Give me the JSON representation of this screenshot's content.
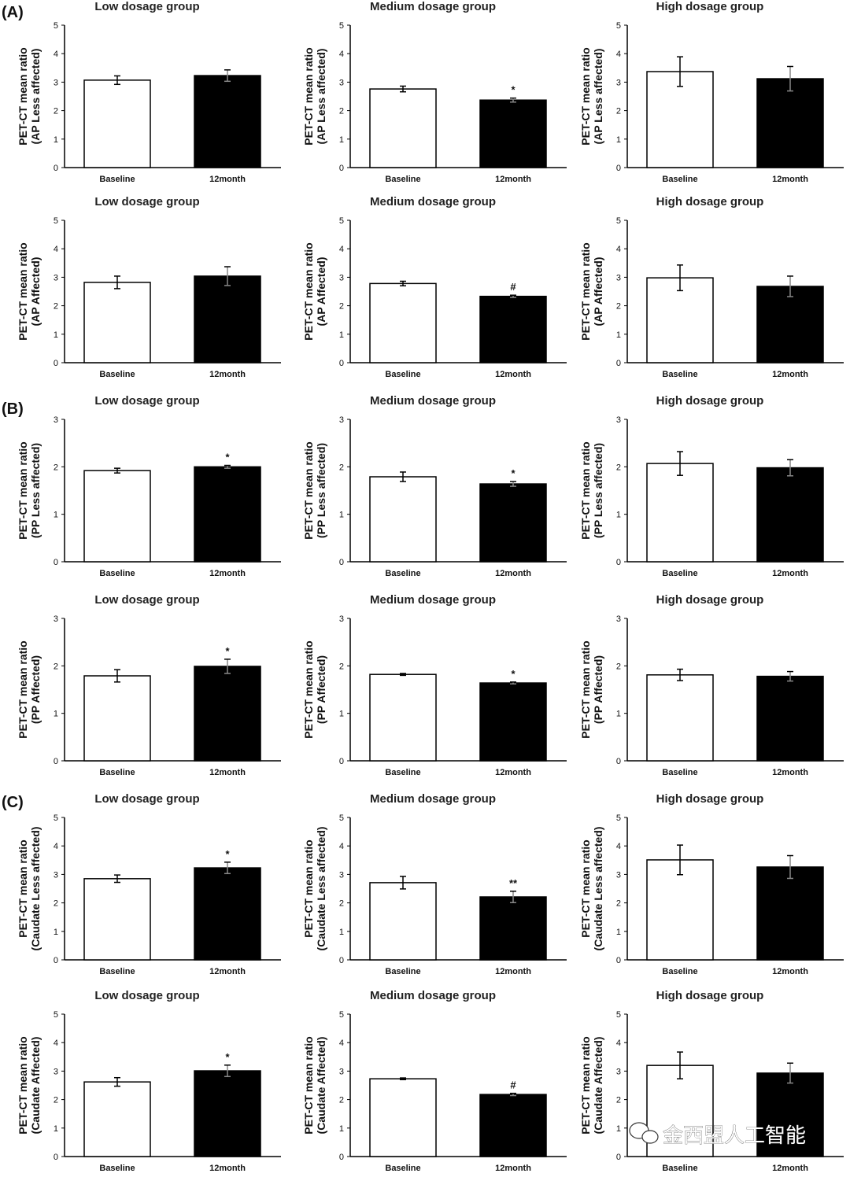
{
  "panels": [
    "(A)",
    "(B)",
    "(C)"
  ],
  "watermark": "金西盟人工智能",
  "chart_data": [
    {
      "type": "bar",
      "title": "Low dosage group",
      "ylabel": [
        "PET-CT mean ratio",
        "(AP Less affected)"
      ],
      "categories": [
        "Baseline",
        "12month"
      ],
      "values": [
        3.07,
        3.23
      ],
      "errors": [
        0.15,
        0.2
      ],
      "significance": [
        "",
        ""
      ],
      "ylim": [
        0,
        5
      ],
      "yticks": [
        0,
        1,
        2,
        3,
        4,
        5
      ]
    },
    {
      "type": "bar",
      "title": "Medium dosage group",
      "ylabel": [
        "PET-CT mean ratio",
        "(AP Less affected)"
      ],
      "categories": [
        "Baseline",
        "12month"
      ],
      "values": [
        2.76,
        2.37
      ],
      "errors": [
        0.1,
        0.07
      ],
      "significance": [
        "",
        "*"
      ],
      "ylim": [
        0,
        5
      ],
      "yticks": [
        0,
        1,
        2,
        3,
        4,
        5
      ]
    },
    {
      "type": "bar",
      "title": "High dosage group",
      "ylabel": [
        "PET-CT mean ratio",
        "(AP Less affected)"
      ],
      "categories": [
        "Baseline",
        "12month"
      ],
      "values": [
        3.37,
        3.12
      ],
      "errors": [
        0.52,
        0.43
      ],
      "significance": [
        "",
        ""
      ],
      "ylim": [
        0,
        5
      ],
      "yticks": [
        0,
        1,
        2,
        3,
        4,
        5
      ]
    },
    {
      "type": "bar",
      "title": "Low dosage group",
      "ylabel": [
        "PET-CT mean ratio",
        "(AP Affected)"
      ],
      "categories": [
        "Baseline",
        "12month"
      ],
      "values": [
        2.82,
        3.04
      ],
      "errors": [
        0.22,
        0.33
      ],
      "significance": [
        "",
        ""
      ],
      "ylim": [
        0,
        5
      ],
      "yticks": [
        0,
        1,
        2,
        3,
        4,
        5
      ]
    },
    {
      "type": "bar",
      "title": "Medium dosage group",
      "ylabel": [
        "PET-CT mean ratio",
        "(AP Affected)"
      ],
      "categories": [
        "Baseline",
        "12month"
      ],
      "values": [
        2.78,
        2.33
      ],
      "errors": [
        0.08,
        0.04
      ],
      "significance": [
        "",
        "#"
      ],
      "ylim": [
        0,
        5
      ],
      "yticks": [
        0,
        1,
        2,
        3,
        4,
        5
      ]
    },
    {
      "type": "bar",
      "title": "High dosage group",
      "ylabel": [
        "PET-CT mean ratio",
        "(AP Affected)"
      ],
      "categories": [
        "Baseline",
        "12month"
      ],
      "values": [
        2.98,
        2.68
      ],
      "errors": [
        0.45,
        0.36
      ],
      "significance": [
        "",
        ""
      ],
      "ylim": [
        0,
        5
      ],
      "yticks": [
        0,
        1,
        2,
        3,
        4,
        5
      ]
    },
    {
      "type": "bar",
      "title": "Low dosage group",
      "ylabel": [
        "PET-CT mean ratio",
        "(PP Less affected)"
      ],
      "categories": [
        "Baseline",
        "12month"
      ],
      "values": [
        1.92,
        2.0
      ],
      "errors": [
        0.05,
        0.03
      ],
      "significance": [
        "",
        "*"
      ],
      "ylim": [
        0,
        3
      ],
      "yticks": [
        0,
        1,
        2,
        3
      ]
    },
    {
      "type": "bar",
      "title": "Medium dosage group",
      "ylabel": [
        "PET-CT mean ratio",
        "(PP Less affected)"
      ],
      "categories": [
        "Baseline",
        "12month"
      ],
      "values": [
        1.79,
        1.64
      ],
      "errors": [
        0.1,
        0.05
      ],
      "significance": [
        "",
        "*"
      ],
      "ylim": [
        0,
        3
      ],
      "yticks": [
        0,
        1,
        2,
        3
      ]
    },
    {
      "type": "bar",
      "title": "High dosage group",
      "ylabel": [
        "PET-CT mean ratio",
        "(PP Less affected)"
      ],
      "categories": [
        "Baseline",
        "12month"
      ],
      "values": [
        2.07,
        1.98
      ],
      "errors": [
        0.25,
        0.17
      ],
      "significance": [
        "",
        ""
      ],
      "ylim": [
        0,
        3
      ],
      "yticks": [
        0,
        1,
        2,
        3
      ]
    },
    {
      "type": "bar",
      "title": "Low dosage group",
      "ylabel": [
        "PET-CT mean ratio",
        "(PP Affected)"
      ],
      "categories": [
        "Baseline",
        "12month"
      ],
      "values": [
        1.79,
        1.99
      ],
      "errors": [
        0.13,
        0.15
      ],
      "significance": [
        "",
        "*"
      ],
      "ylim": [
        0,
        3
      ],
      "yticks": [
        0,
        1,
        2,
        3
      ]
    },
    {
      "type": "bar",
      "title": "Medium dosage group",
      "ylabel": [
        "PET-CT mean ratio",
        "(PP Affected)"
      ],
      "categories": [
        "Baseline",
        "12month"
      ],
      "values": [
        1.82,
        1.64
      ],
      "errors": [
        0.02,
        0.02
      ],
      "significance": [
        "",
        "*"
      ],
      "ylim": [
        0,
        3
      ],
      "yticks": [
        0,
        1,
        2,
        3
      ]
    },
    {
      "type": "bar",
      "title": "High dosage group",
      "ylabel": [
        "PET-CT mean ratio",
        "(PP Affected)"
      ],
      "categories": [
        "Baseline",
        "12month"
      ],
      "values": [
        1.81,
        1.78
      ],
      "errors": [
        0.12,
        0.1
      ],
      "significance": [
        "",
        ""
      ],
      "ylim": [
        0,
        3
      ],
      "yticks": [
        0,
        1,
        2,
        3
      ]
    },
    {
      "type": "bar",
      "title": "Low dosage group",
      "ylabel": [
        "PET-CT mean ratio",
        "(Caudate Less affected)"
      ],
      "categories": [
        "Baseline",
        "12month"
      ],
      "values": [
        2.85,
        3.23
      ],
      "errors": [
        0.13,
        0.2
      ],
      "significance": [
        "",
        "*"
      ],
      "ylim": [
        0,
        5
      ],
      "yticks": [
        0,
        1,
        2,
        3,
        4,
        5
      ]
    },
    {
      "type": "bar",
      "title": "Medium dosage group",
      "ylabel": [
        "PET-CT mean ratio",
        "(Caudate Less affected)"
      ],
      "categories": [
        "Baseline",
        "12month"
      ],
      "values": [
        2.71,
        2.21
      ],
      "errors": [
        0.22,
        0.2
      ],
      "significance": [
        "",
        "**"
      ],
      "ylim": [
        0,
        5
      ],
      "yticks": [
        0,
        1,
        2,
        3,
        4,
        5
      ]
    },
    {
      "type": "bar",
      "title": "High dosage group",
      "ylabel": [
        "PET-CT mean ratio",
        "(Caudate Less affected)"
      ],
      "categories": [
        "Baseline",
        "12month"
      ],
      "values": [
        3.51,
        3.26
      ],
      "errors": [
        0.52,
        0.4
      ],
      "significance": [
        "",
        ""
      ],
      "ylim": [
        0,
        5
      ],
      "yticks": [
        0,
        1,
        2,
        3,
        4,
        5
      ]
    },
    {
      "type": "bar",
      "title": "Low dosage group",
      "ylabel": [
        "PET-CT mean ratio",
        "(Caudate Affected)"
      ],
      "categories": [
        "Baseline",
        "12month"
      ],
      "values": [
        2.62,
        3.01
      ],
      "errors": [
        0.15,
        0.2
      ],
      "significance": [
        "",
        "*"
      ],
      "ylim": [
        0,
        5
      ],
      "yticks": [
        0,
        1,
        2,
        3,
        4,
        5
      ]
    },
    {
      "type": "bar",
      "title": "Medium dosage group",
      "ylabel": [
        "PET-CT mean ratio",
        "(Caudate Affected)"
      ],
      "categories": [
        "Baseline",
        "12month"
      ],
      "values": [
        2.73,
        2.18
      ],
      "errors": [
        0.03,
        0.04
      ],
      "significance": [
        "",
        "#"
      ],
      "ylim": [
        0,
        5
      ],
      "yticks": [
        0,
        1,
        2,
        3,
        4,
        5
      ]
    },
    {
      "type": "bar",
      "title": "High dosage group",
      "ylabel": [
        "PET-CT mean ratio",
        "(Caudate Affected)"
      ],
      "categories": [
        "Baseline",
        "12month"
      ],
      "values": [
        3.2,
        2.93
      ],
      "errors": [
        0.47,
        0.35
      ],
      "significance": [
        "",
        ""
      ],
      "ylim": [
        0,
        5
      ],
      "yticks": [
        0,
        1,
        2,
        3,
        4,
        5
      ]
    }
  ]
}
